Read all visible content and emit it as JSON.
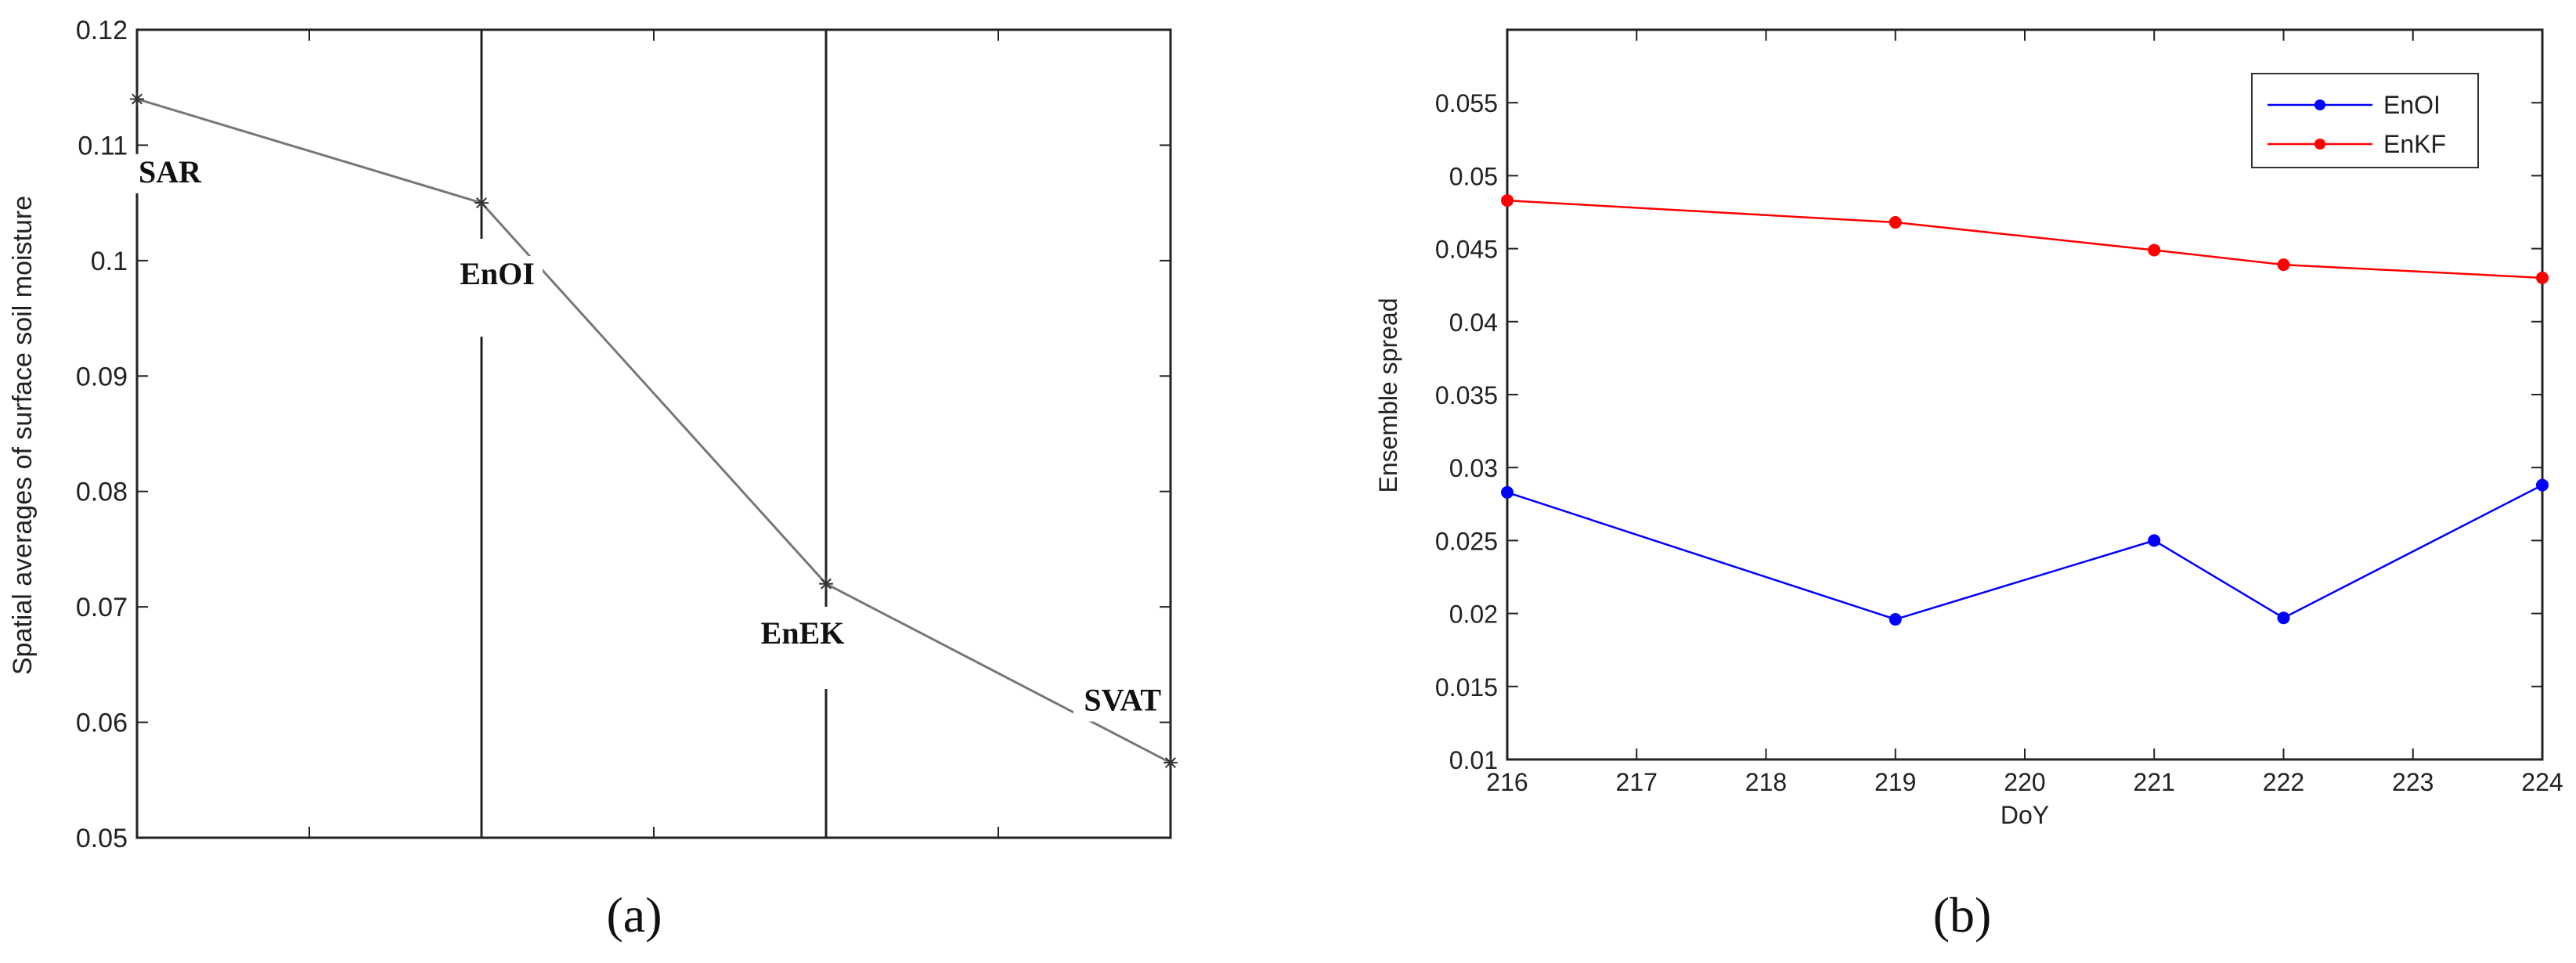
{
  "chart_data": [
    {
      "type": "line",
      "panel_label": "(a)",
      "ylabel": "Spatial averages of surface soil moisture",
      "xlabel": "",
      "ylim": [
        0.05,
        0.12
      ],
      "yticks": [
        "0.05",
        "0.06",
        "0.07",
        "0.08",
        "0.09",
        "0.1",
        "0.11",
        "0.12"
      ],
      "xlim": [
        0,
        3
      ],
      "categories": [
        "SAR",
        "EnOI",
        "EnEK",
        "SVAT"
      ],
      "series": [
        {
          "name": "",
          "x": [
            0,
            1,
            2,
            3
          ],
          "values": [
            0.114,
            0.105,
            0.072,
            0.0565
          ],
          "color": "#777777"
        }
      ],
      "grid": false
    },
    {
      "type": "line",
      "panel_label": "(b)",
      "xlabel": "DoY",
      "ylabel": "Ensemble spread",
      "xlim": [
        216,
        224
      ],
      "ylim": [
        0.01,
        0.06
      ],
      "xticks": [
        "216",
        "217",
        "218",
        "219",
        "220",
        "221",
        "222",
        "223",
        "224"
      ],
      "yticks": [
        "0.01",
        "0.015",
        "0.02",
        "0.025",
        "0.03",
        "0.035",
        "0.04",
        "0.045",
        "0.05",
        "0.055"
      ],
      "series": [
        {
          "name": "EnOI",
          "x": [
            216,
            219,
            221,
            222,
            224
          ],
          "values": [
            0.0283,
            0.0196,
            0.025,
            0.0197,
            0.0288
          ],
          "color": "#0000ff"
        },
        {
          "name": "EnKF",
          "x": [
            216,
            219,
            221,
            222,
            224
          ],
          "values": [
            0.0483,
            0.0468,
            0.0449,
            0.0439,
            0.043
          ],
          "color": "#ff0000"
        }
      ],
      "legend": "top-right",
      "grid": false
    }
  ]
}
